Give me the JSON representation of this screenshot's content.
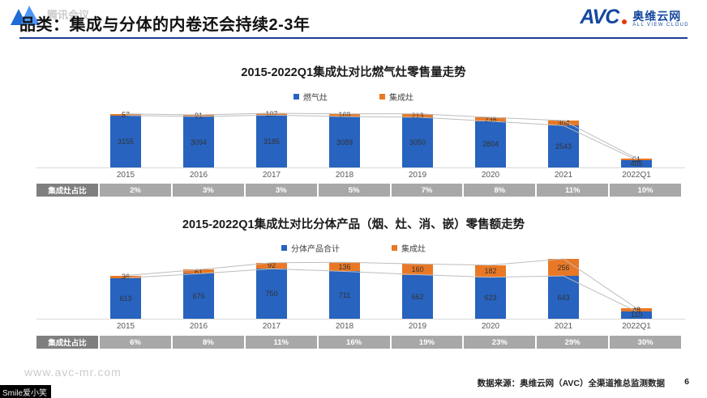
{
  "watermarks": {
    "meeting_text": "腾讯会议",
    "bottom_left": "Smile爱小笑"
  },
  "header": {
    "title": "品类：集成与分体的内卷还会持续2-3年",
    "logo": {
      "text": "AVC",
      "name": "奥维云网",
      "subtitle": "ALL VIEW CLOUD"
    }
  },
  "footer": {
    "website": "www.avc-mr.com",
    "source": "数据来源：奥维云网（AVC）全渠道推总监测数据",
    "page": "6"
  },
  "colors": {
    "primary_bar": "#2763BF",
    "secondary_bar": "#E97826",
    "divider_blue": "#1E3C96",
    "trend_line": "#BDBDBD",
    "share_label_bg": "#7F7F7F",
    "share_cell_bg": "#A8A8A8"
  },
  "chart_data": [
    {
      "type": "bar",
      "stacked": true,
      "title": "2015-2022Q1集成灶对比燃气灶零售量走势",
      "legend_position": "top",
      "grid": false,
      "categories": [
        "2015",
        "2016",
        "2017",
        "2018",
        "2019",
        "2020",
        "2021",
        "2022Q1"
      ],
      "series": [
        {
          "name": "燃气灶",
          "color": "#2763BF",
          "values": [
            3155,
            3094,
            3185,
            3089,
            3050,
            2804,
            2543,
            455
          ]
        },
        {
          "name": "集成灶",
          "color": "#E97826",
          "values": [
            57,
            91,
            107,
            169,
            213,
            238,
            304,
            51
          ]
        }
      ],
      "share_row": {
        "label": "集成灶占比",
        "values": [
          "2%",
          "3%",
          "3%",
          "5%",
          "7%",
          "8%",
          "11%",
          "10%"
        ]
      }
    },
    {
      "type": "bar",
      "stacked": true,
      "title": "2015-2022Q1集成灶对比分体产品（烟、灶、消、嵌）零售额走势",
      "legend_position": "top",
      "grid": false,
      "categories": [
        "2015",
        "2016",
        "2017",
        "2018",
        "2019",
        "2020",
        "2021",
        "2022Q1"
      ],
      "series": [
        {
          "name": "分体产品合计",
          "color": "#2763BF",
          "values": [
            613,
            676,
            750,
            711,
            662,
            623,
            643,
            110
          ]
        },
        {
          "name": "集成灶",
          "color": "#E97826",
          "values": [
            36,
            61,
            92,
            136,
            160,
            182,
            256,
            48
          ]
        }
      ],
      "share_row": {
        "label": "集成灶占比",
        "values": [
          "6%",
          "8%",
          "11%",
          "16%",
          "19%",
          "23%",
          "29%",
          "30%"
        ]
      }
    }
  ]
}
